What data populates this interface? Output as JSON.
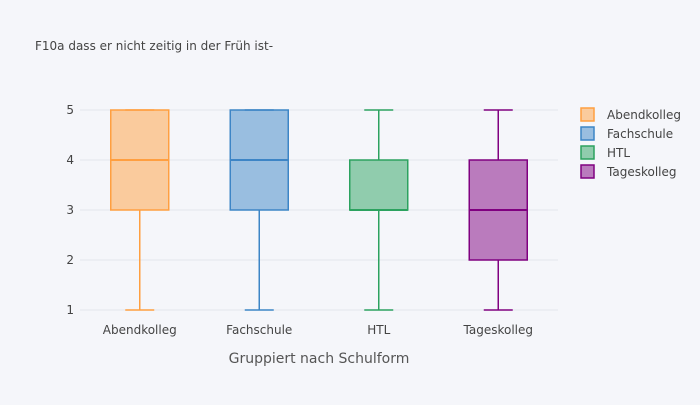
{
  "chart_data": {
    "type": "box",
    "title": "F10a dass er nicht zeitig in der Früh ist-",
    "xlabel": "Gruppiert nach Schulform",
    "ylabel": "",
    "categories": [
      "Abendkolleg",
      "Fachschule",
      "HTL",
      "Tageskolleg"
    ],
    "ylim": [
      0.8,
      5.2
    ],
    "yticks": [
      1,
      2,
      3,
      4,
      5
    ],
    "grid": true,
    "legend_position": "top-right",
    "series": [
      {
        "name": "Abendkolleg",
        "color": "#ff9f40",
        "min": 1,
        "q1": 3,
        "median": 4,
        "q3": 5,
        "max": 5
      },
      {
        "name": "Fachschule",
        "color": "#3d85c6",
        "min": 1,
        "q1": 3,
        "median": 4,
        "q3": 5,
        "max": 5
      },
      {
        "name": "HTL",
        "color": "#2ca25f",
        "min": 1,
        "q1": 3,
        "median": 3,
        "q3": 4,
        "max": 5
      },
      {
        "name": "Tageskolleg",
        "color": "#800080",
        "min": 1,
        "q1": 2,
        "median": 3,
        "q3": 4,
        "max": 5
      }
    ]
  }
}
